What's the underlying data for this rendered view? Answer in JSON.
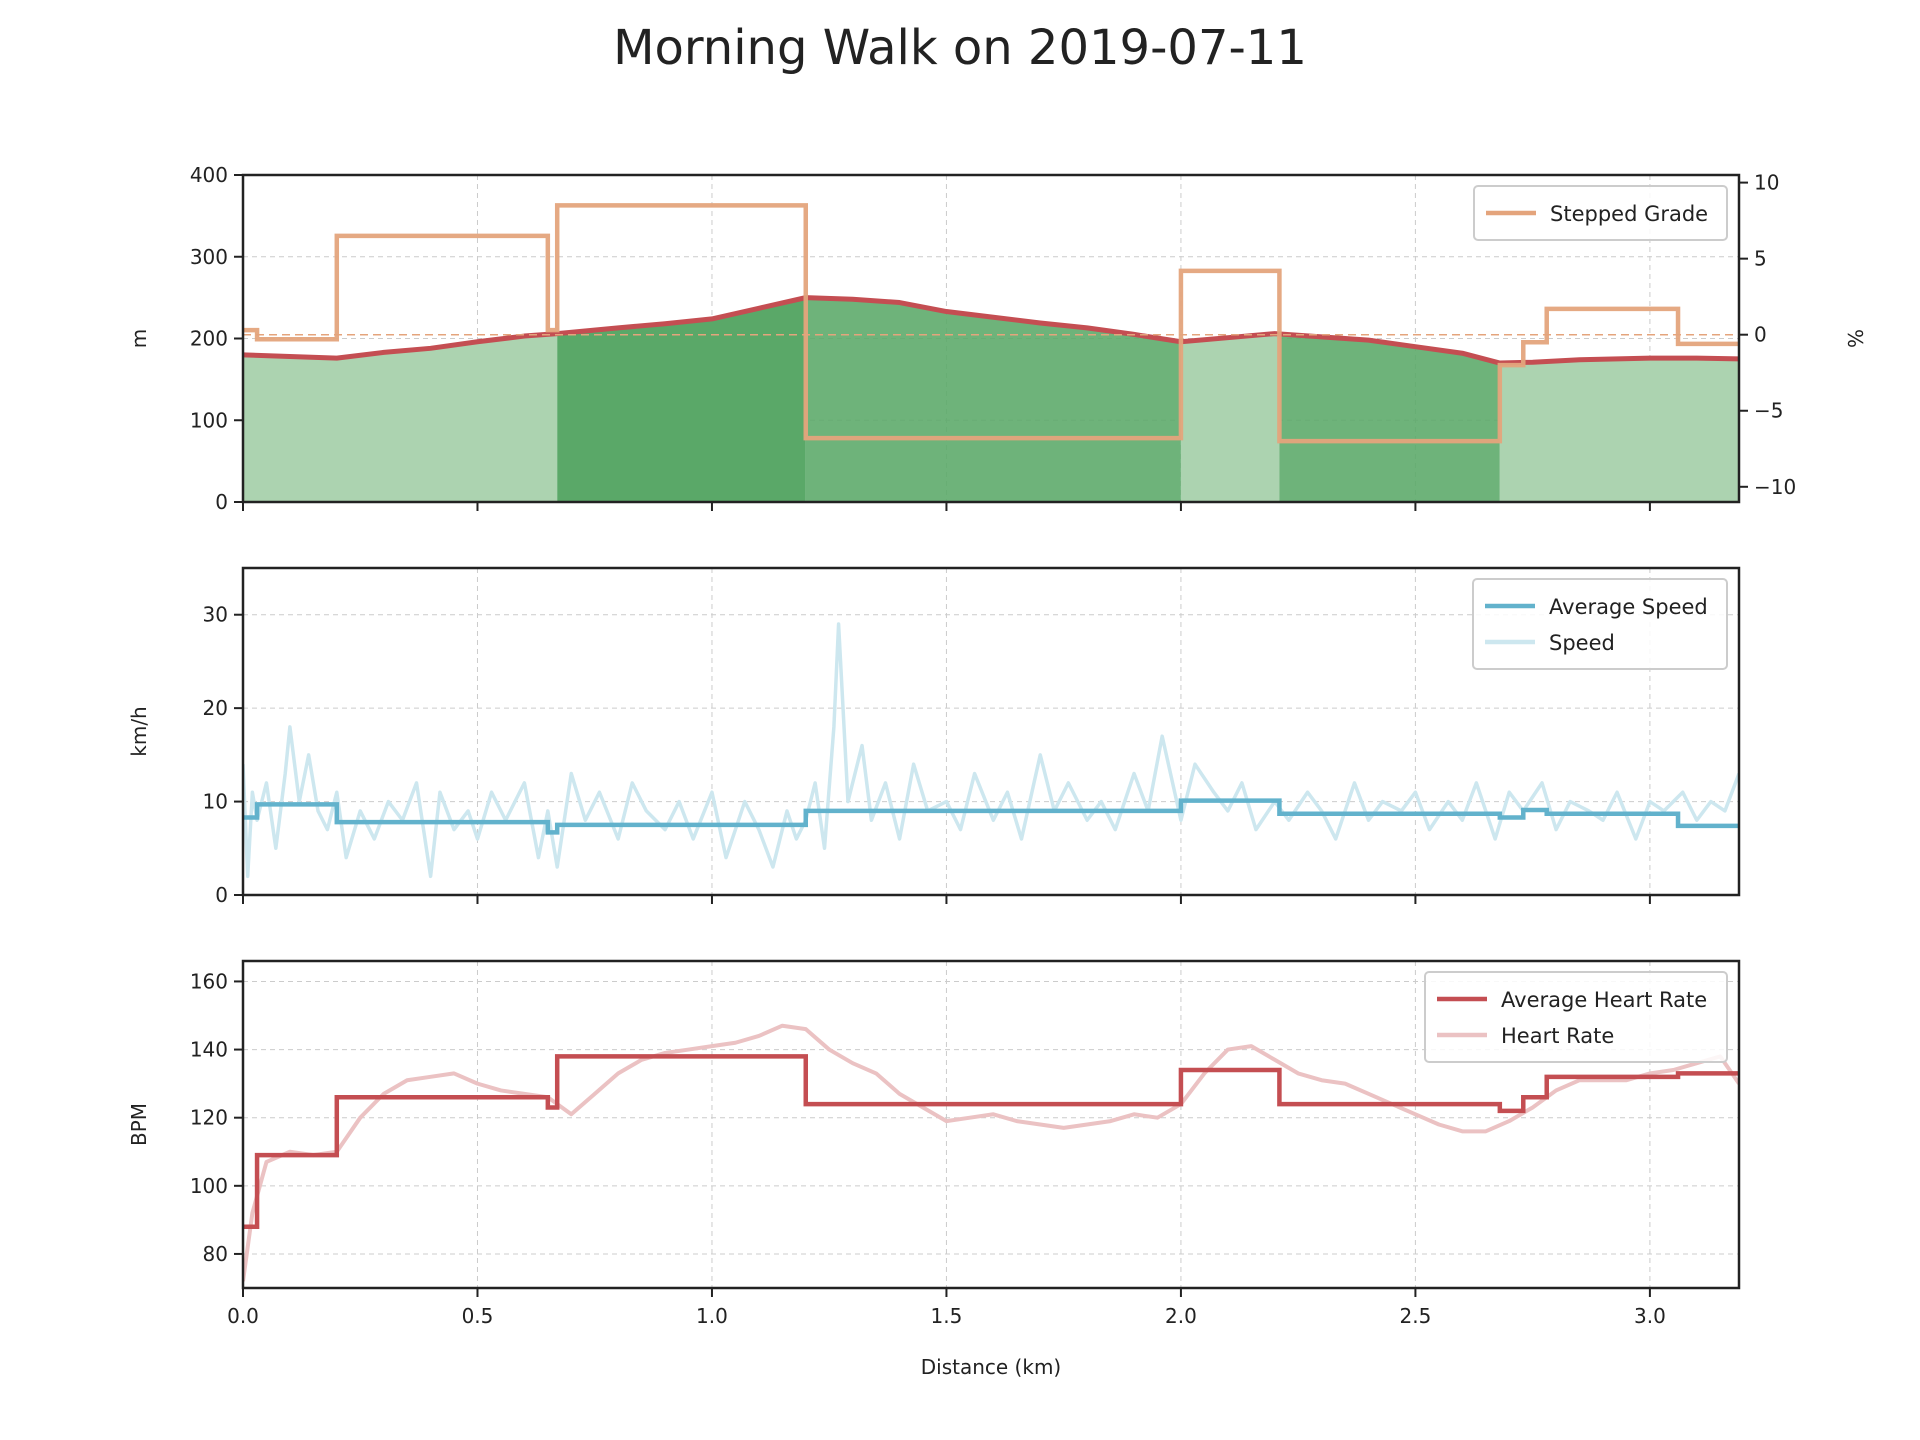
{
  "colors": {
    "stepped_grade": "#e4a47c",
    "elevation_line": "#c44e52",
    "elevation_fill_light": "#acd3b0",
    "elevation_fill_dark": "#5aa868",
    "avg_speed": "#62b2cc",
    "speed": "#cde7ef",
    "avg_hr": "#c44e52",
    "hr": "#ebc2c3",
    "zero_line": "#e4a47c"
  },
  "chart_data": {
    "title": "Morning Walk on 2019-07-11",
    "xlabel": "Distance (km)",
    "xlim": [
      0,
      3.19
    ],
    "xticks": [
      0.0,
      0.5,
      1.0,
      1.5,
      2.0,
      2.5,
      3.0
    ],
    "xtick_labels": [
      "0.0",
      "0.5",
      "1.0",
      "1.5",
      "2.0",
      "2.5",
      "3.0"
    ],
    "panels": [
      {
        "type": "area",
        "ylabel": "m",
        "ylim": [
          0,
          400
        ],
        "yticks": [
          0,
          100,
          200,
          300,
          400
        ],
        "y2label": "%",
        "y2lim": [
          -11,
          10.5
        ],
        "y2ticks": [
          10,
          5,
          0,
          -5,
          -10
        ],
        "y2tick_labels": [
          "10",
          "5",
          "0",
          "−5",
          "−10"
        ],
        "legend": {
          "placement": "top-right",
          "entries": [
            "Stepped Grade"
          ]
        },
        "elevation": {
          "x": [
            0.0,
            0.1,
            0.2,
            0.3,
            0.4,
            0.5,
            0.6,
            0.67,
            0.8,
            0.9,
            1.0,
            1.1,
            1.2,
            1.3,
            1.4,
            1.5,
            1.6,
            1.7,
            1.8,
            1.9,
            2.0,
            2.1,
            2.2,
            2.3,
            2.4,
            2.5,
            2.6,
            2.68,
            2.75,
            2.85,
            3.0,
            3.1,
            3.19
          ],
          "y": [
            180,
            178,
            176,
            183,
            188,
            196,
            203,
            206,
            213,
            218,
            224,
            237,
            250,
            248,
            244,
            233,
            226,
            219,
            213,
            205,
            196,
            201,
            206,
            202,
            198,
            190,
            182,
            170,
            171,
            174,
            176,
            176,
            175
          ]
        },
        "elevation_segments": [
          {
            "start": 0.0,
            "end": 0.67,
            "shade": "light"
          },
          {
            "start": 0.67,
            "end": 1.2,
            "shade": "dark"
          },
          {
            "start": 1.2,
            "end": 2.0,
            "shade": "mid"
          },
          {
            "start": 2.0,
            "end": 2.21,
            "shade": "light"
          },
          {
            "start": 2.21,
            "end": 2.68,
            "shade": "mid"
          },
          {
            "start": 2.68,
            "end": 3.19,
            "shade": "light"
          }
        ],
        "stepped_grade": {
          "name": "Stepped Grade",
          "x": [
            0.0,
            0.03,
            0.2,
            0.65,
            0.67,
            1.2,
            2.0,
            2.21,
            2.68,
            2.73,
            2.78,
            3.06,
            3.19
          ],
          "y": [
            0.3,
            -0.3,
            6.5,
            0.3,
            8.5,
            -6.8,
            4.2,
            -7.0,
            -2.0,
            -0.5,
            1.7,
            -0.6,
            -0.6
          ]
        }
      },
      {
        "type": "line",
        "ylabel": "km/h",
        "ylim": [
          0,
          35
        ],
        "yticks": [
          0,
          10,
          20,
          30
        ],
        "legend": {
          "placement": "top-right",
          "entries": [
            "Average Speed",
            "Speed"
          ]
        },
        "average_speed": {
          "name": "Average Speed",
          "x": [
            0.0,
            0.03,
            0.2,
            0.65,
            0.67,
            1.2,
            2.0,
            2.21,
            2.68,
            2.73,
            2.78,
            3.06,
            3.19
          ],
          "y": [
            8.3,
            9.7,
            7.8,
            6.7,
            7.5,
            9.0,
            10.1,
            8.7,
            8.3,
            9.1,
            8.7,
            7.4,
            7.4
          ]
        },
        "speed": {
          "name": "Speed",
          "x": [
            0.0,
            0.01,
            0.02,
            0.03,
            0.05,
            0.07,
            0.09,
            0.1,
            0.12,
            0.14,
            0.16,
            0.18,
            0.2,
            0.22,
            0.25,
            0.28,
            0.31,
            0.34,
            0.37,
            0.4,
            0.42,
            0.45,
            0.48,
            0.5,
            0.53,
            0.56,
            0.6,
            0.63,
            0.65,
            0.67,
            0.7,
            0.73,
            0.76,
            0.8,
            0.83,
            0.86,
            0.9,
            0.93,
            0.96,
            1.0,
            1.03,
            1.07,
            1.1,
            1.13,
            1.16,
            1.18,
            1.2,
            1.22,
            1.24,
            1.26,
            1.27,
            1.29,
            1.32,
            1.34,
            1.37,
            1.4,
            1.43,
            1.46,
            1.5,
            1.53,
            1.56,
            1.6,
            1.63,
            1.66,
            1.7,
            1.73,
            1.76,
            1.8,
            1.83,
            1.86,
            1.9,
            1.93,
            1.96,
            2.0,
            2.03,
            2.07,
            2.1,
            2.13,
            2.16,
            2.2,
            2.23,
            2.27,
            2.3,
            2.33,
            2.37,
            2.4,
            2.43,
            2.47,
            2.5,
            2.53,
            2.57,
            2.6,
            2.63,
            2.67,
            2.7,
            2.73,
            2.77,
            2.8,
            2.83,
            2.87,
            2.9,
            2.93,
            2.97,
            3.0,
            3.03,
            3.07,
            3.1,
            3.13,
            3.16,
            3.19
          ],
          "y": [
            14,
            2,
            11,
            8,
            12,
            5,
            13,
            18,
            10,
            15,
            9,
            7,
            11,
            4,
            9,
            6,
            10,
            8,
            12,
            2,
            11,
            7,
            9,
            6,
            11,
            8,
            12,
            4,
            9,
            3,
            13,
            8,
            11,
            6,
            12,
            9,
            7,
            10,
            6,
            11,
            4,
            10,
            7,
            3,
            9,
            6,
            8,
            12,
            5,
            18,
            29,
            10,
            16,
            8,
            12,
            6,
            14,
            9,
            10,
            7,
            13,
            8,
            11,
            6,
            15,
            9,
            12,
            8,
            10,
            7,
            13,
            9,
            17,
            8,
            14,
            11,
            9,
            12,
            7,
            10,
            8,
            11,
            9,
            6,
            12,
            8,
            10,
            9,
            11,
            7,
            10,
            8,
            12,
            6,
            11,
            9,
            12,
            7,
            10,
            9,
            8,
            11,
            6,
            10,
            9,
            11,
            8,
            10,
            9,
            13
          ]
        }
      },
      {
        "type": "line",
        "ylabel": "BPM",
        "ylim": [
          70,
          166
        ],
        "yticks": [
          80,
          100,
          120,
          140,
          160
        ],
        "legend": {
          "placement": "top-right",
          "entries": [
            "Average Heart Rate",
            "Heart Rate"
          ]
        },
        "average_heart_rate": {
          "name": "Average Heart Rate",
          "x": [
            0.0,
            0.03,
            0.2,
            0.65,
            0.67,
            1.2,
            2.0,
            2.21,
            2.68,
            2.73,
            2.78,
            3.06,
            3.19
          ],
          "y": [
            88,
            109,
            126,
            123,
            138,
            124,
            134,
            124,
            122,
            126,
            132,
            133,
            133
          ]
        },
        "heart_rate": {
          "name": "Heart Rate",
          "x": [
            0.0,
            0.02,
            0.05,
            0.1,
            0.15,
            0.2,
            0.25,
            0.3,
            0.35,
            0.4,
            0.45,
            0.5,
            0.55,
            0.6,
            0.65,
            0.7,
            0.75,
            0.8,
            0.85,
            0.9,
            0.95,
            1.0,
            1.05,
            1.1,
            1.15,
            1.2,
            1.25,
            1.3,
            1.35,
            1.4,
            1.45,
            1.5,
            1.55,
            1.6,
            1.65,
            1.7,
            1.75,
            1.8,
            1.85,
            1.9,
            1.95,
            2.0,
            2.05,
            2.1,
            2.15,
            2.2,
            2.25,
            2.3,
            2.35,
            2.4,
            2.45,
            2.5,
            2.55,
            2.6,
            2.65,
            2.7,
            2.75,
            2.8,
            2.85,
            2.9,
            2.95,
            3.0,
            3.05,
            3.1,
            3.15,
            3.19
          ],
          "y": [
            72,
            92,
            107,
            110,
            109,
            110,
            120,
            127,
            131,
            132,
            133,
            130,
            128,
            127,
            126,
            121,
            127,
            133,
            137,
            139,
            140,
            141,
            142,
            144,
            147,
            146,
            140,
            136,
            133,
            127,
            123,
            119,
            120,
            121,
            119,
            118,
            117,
            118,
            119,
            121,
            120,
            124,
            133,
            140,
            141,
            137,
            133,
            131,
            130,
            127,
            124,
            121,
            118,
            116,
            116,
            119,
            123,
            128,
            131,
            131,
            131,
            133,
            134,
            136,
            138,
            130
          ]
        }
      }
    ]
  }
}
